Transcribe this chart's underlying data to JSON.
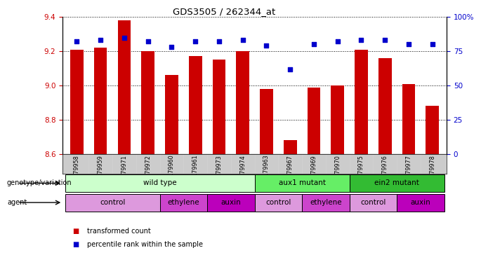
{
  "title": "GDS3505 / 262344_at",
  "samples": [
    "GSM179958",
    "GSM179959",
    "GSM179971",
    "GSM179972",
    "GSM179960",
    "GSM179961",
    "GSM179973",
    "GSM179974",
    "GSM179963",
    "GSM179967",
    "GSM179969",
    "GSM179970",
    "GSM179975",
    "GSM179976",
    "GSM179977",
    "GSM179978"
  ],
  "transformed_counts": [
    9.21,
    9.22,
    9.38,
    9.2,
    9.06,
    9.17,
    9.15,
    9.2,
    8.98,
    8.68,
    8.99,
    9.0,
    9.21,
    9.16,
    9.01,
    8.88
  ],
  "percentile_ranks": [
    82,
    83,
    85,
    82,
    78,
    82,
    82,
    83,
    79,
    62,
    80,
    82,
    83,
    83,
    80,
    80
  ],
  "ylim_left": [
    8.6,
    9.4
  ],
  "ylim_right": [
    0,
    100
  ],
  "yticks_left": [
    8.6,
    8.8,
    9.0,
    9.2,
    9.4
  ],
  "yticks_right": [
    0,
    25,
    50,
    75,
    100
  ],
  "bar_color": "#cc0000",
  "dot_color": "#0000cc",
  "genotype_groups": [
    {
      "label": "wild type",
      "start": 0,
      "end": 8,
      "color": "#ccffcc"
    },
    {
      "label": "aux1 mutant",
      "start": 8,
      "end": 12,
      "color": "#66ee66"
    },
    {
      "label": "ein2 mutant",
      "start": 12,
      "end": 16,
      "color": "#33bb33"
    }
  ],
  "agent_groups": [
    {
      "label": "control",
      "start": 0,
      "end": 4,
      "color": "#dd99dd"
    },
    {
      "label": "ethylene",
      "start": 4,
      "end": 6,
      "color": "#cc44cc"
    },
    {
      "label": "auxin",
      "start": 6,
      "end": 8,
      "color": "#bb00bb"
    },
    {
      "label": "control",
      "start": 8,
      "end": 10,
      "color": "#dd99dd"
    },
    {
      "label": "ethylene",
      "start": 10,
      "end": 12,
      "color": "#cc44cc"
    },
    {
      "label": "control",
      "start": 12,
      "end": 14,
      "color": "#dd99dd"
    },
    {
      "label": "auxin",
      "start": 14,
      "end": 16,
      "color": "#bb00bb"
    }
  ],
  "left_label_color": "#cc0000",
  "right_label_color": "#0000cc",
  "sample_bg_color": "#cccccc",
  "legend_items": [
    {
      "label": "transformed count",
      "color": "#cc0000"
    },
    {
      "label": "percentile rank within the sample",
      "color": "#0000cc"
    }
  ]
}
